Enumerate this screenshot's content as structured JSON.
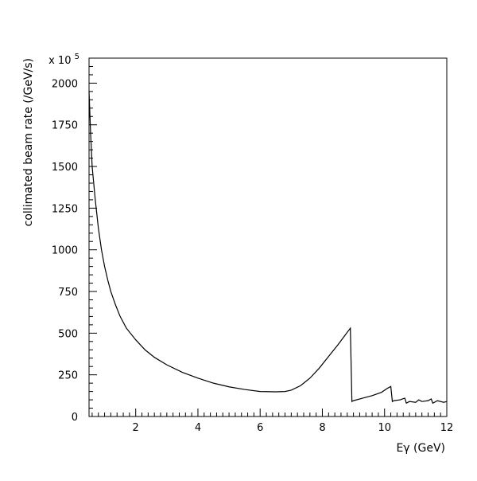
{
  "chart_data": {
    "type": "line",
    "title": "",
    "xlabel": "Eγ (GeV)",
    "ylabel": "collimated beam rate (/GeV/s)",
    "y_multiplier_label": "x 10",
    "y_multiplier_exponent": "5",
    "xlim": [
      0.5,
      12
    ],
    "ylim": [
      0,
      2150
    ],
    "x_ticks": [
      2,
      4,
      6,
      8,
      10,
      12
    ],
    "y_ticks": [
      0,
      250,
      500,
      750,
      1000,
      1250,
      1500,
      1750,
      2000
    ],
    "grid": false,
    "legend": "none",
    "line_color": "#000000",
    "series": [
      {
        "x": [
          0.5,
          0.55,
          0.6,
          0.7,
          0.8,
          0.9,
          1.0,
          1.1,
          1.2,
          1.35,
          1.5,
          1.7,
          2.0,
          2.3,
          2.6,
          3.0,
          3.5,
          4.0,
          4.5,
          5.0,
          5.5,
          6.0,
          6.5,
          6.8,
          7.0,
          7.3,
          7.6,
          7.9,
          8.2,
          8.5,
          8.7,
          8.9,
          8.95,
          9.0,
          9.3,
          9.6,
          9.9,
          10.1,
          10.2,
          10.25,
          10.3,
          10.5,
          10.65,
          10.7,
          10.8,
          11.0,
          11.1,
          11.2,
          11.4,
          11.5,
          11.55,
          11.7,
          11.9,
          12.0
        ],
        "y": [
          1950,
          1700,
          1500,
          1300,
          1130,
          1000,
          900,
          820,
          750,
          670,
          600,
          530,
          460,
          400,
          355,
          310,
          265,
          230,
          200,
          178,
          162,
          150,
          148,
          150,
          158,
          185,
          230,
          290,
          360,
          430,
          480,
          530,
          90,
          95,
          110,
          125,
          145,
          170,
          180,
          90,
          95,
          100,
          110,
          80,
          90,
          85,
          100,
          90,
          95,
          105,
          80,
          95,
          85,
          90
        ]
      }
    ]
  }
}
